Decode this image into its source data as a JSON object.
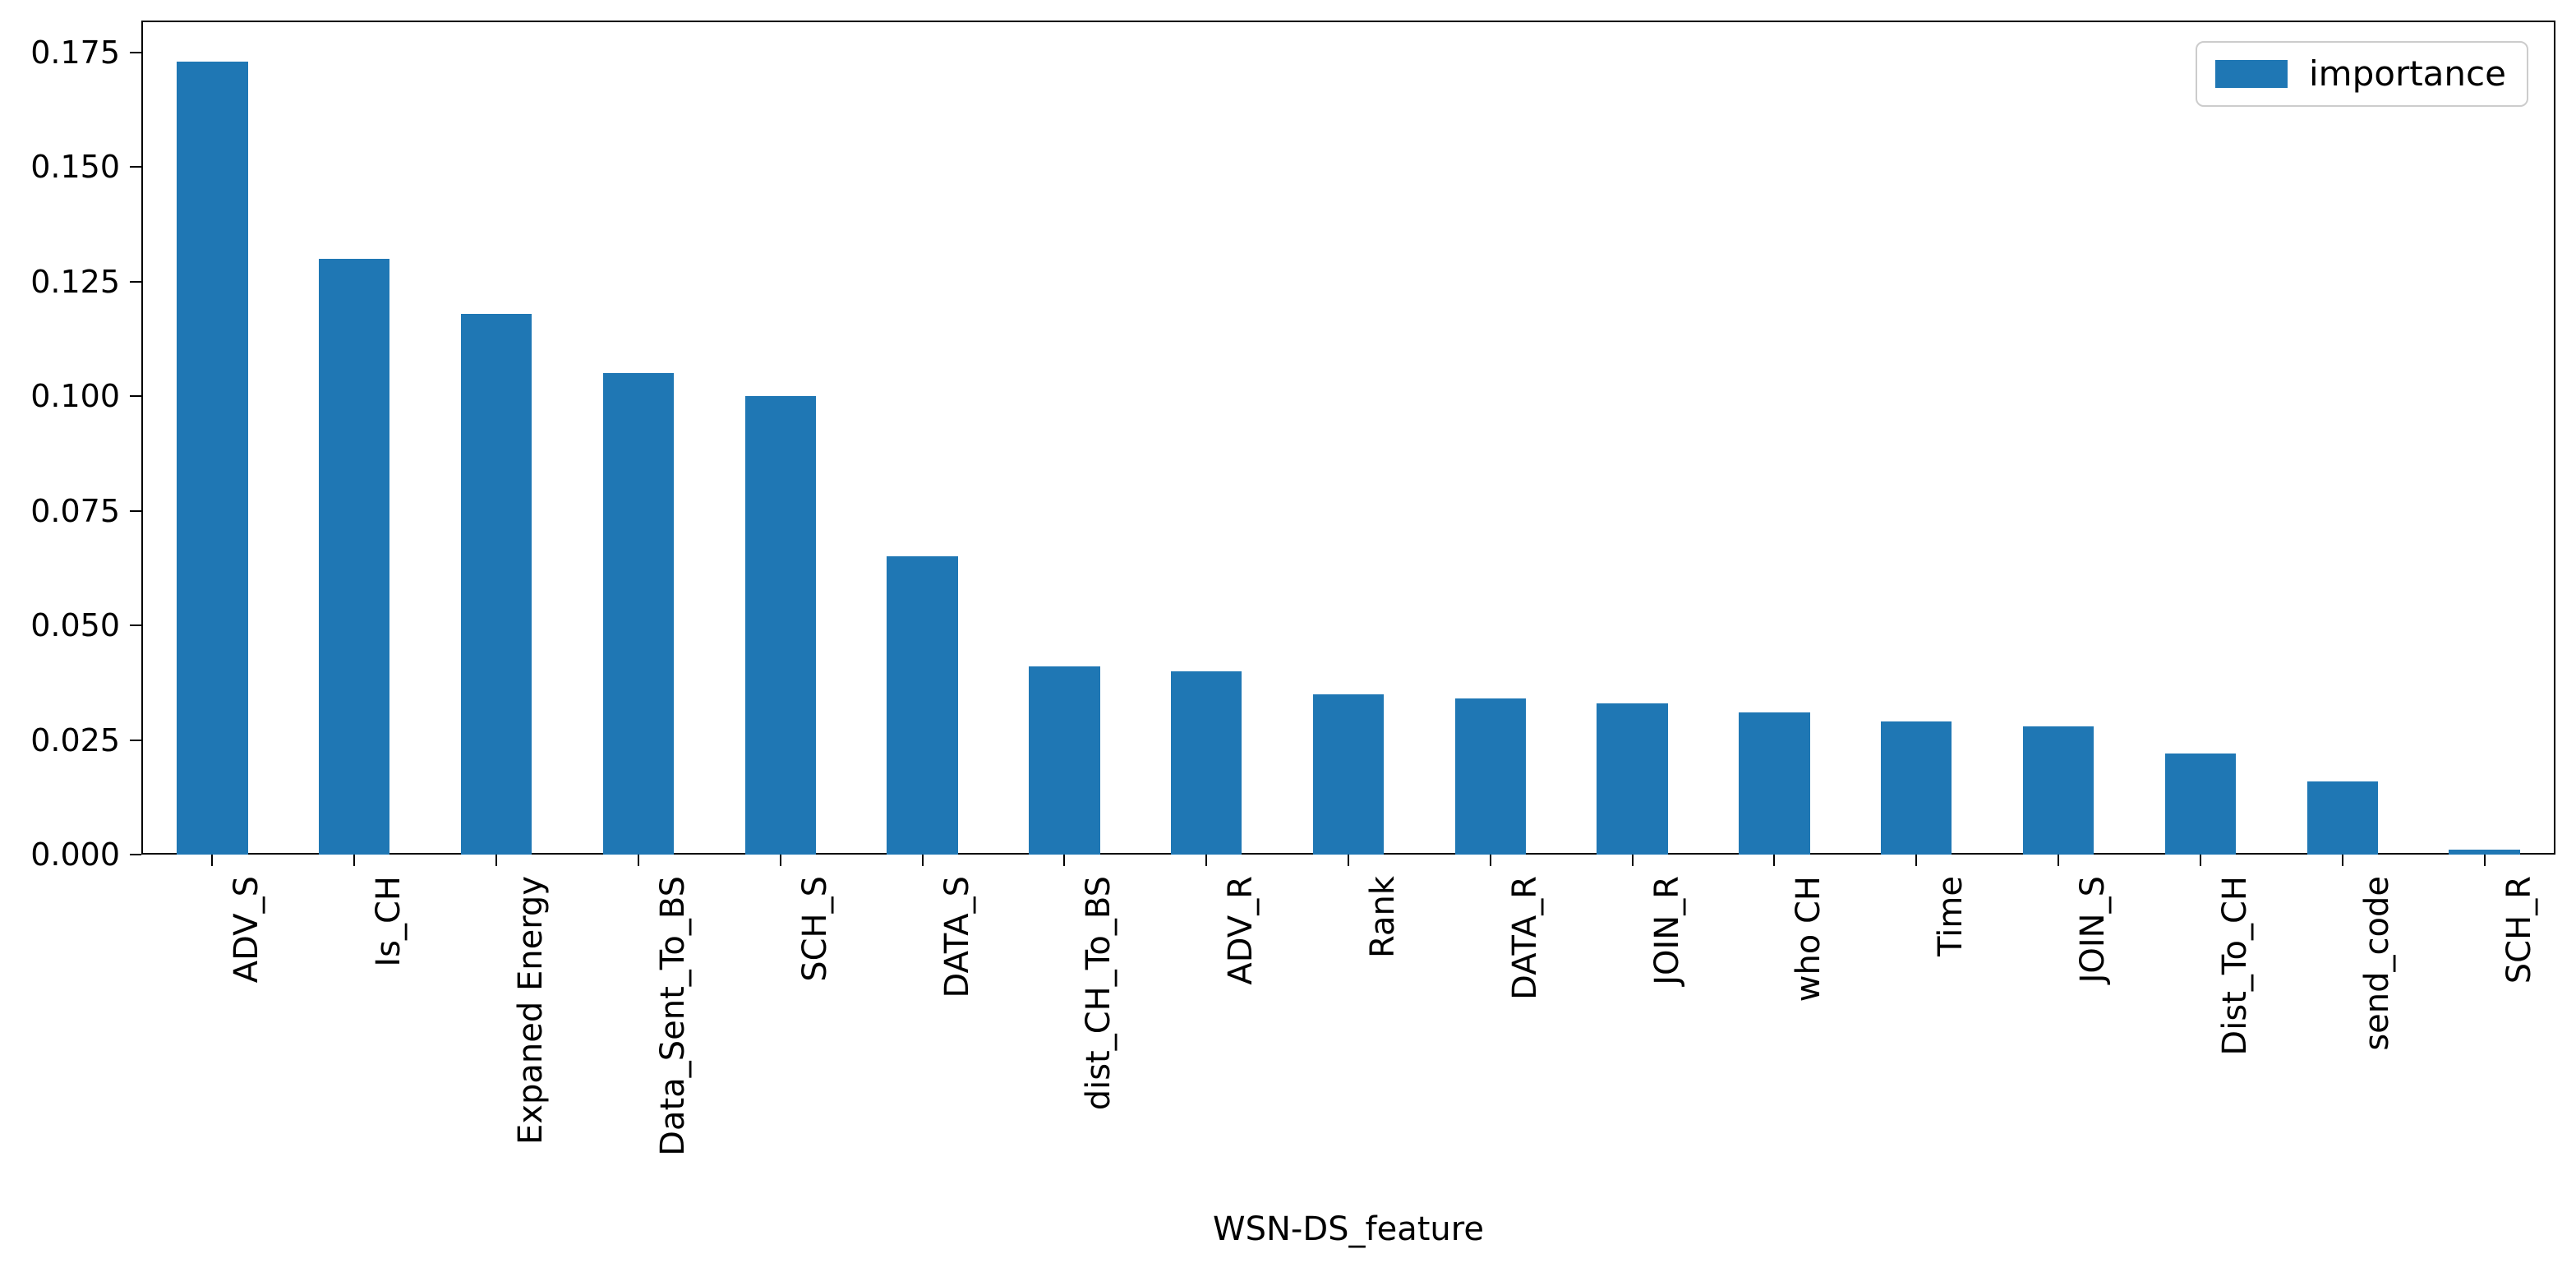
{
  "chart_data": {
    "type": "bar",
    "title": "",
    "xlabel": "WSN-DS_feature",
    "ylabel": "",
    "legend": [
      "importance"
    ],
    "legend_position": "upper right",
    "grid": false,
    "bar_color": "#1f77b4",
    "axis_color": "#000000",
    "background_color": "#ffffff",
    "x_tick_rotation": 90,
    "categories": [
      "ADV_S",
      "Is_CH",
      "Expaned Energy",
      "Data_Sent_To_BS",
      "SCH_S",
      "DATA_S",
      "dist_CH_To_BS",
      "ADV_R",
      "Rank",
      "DATA_R",
      "JOIN_R",
      "who CH",
      "Time",
      "JOIN_S",
      "Dist_To_CH",
      "send_code",
      "SCH_R"
    ],
    "values": [
      0.173,
      0.13,
      0.118,
      0.105,
      0.1,
      0.065,
      0.041,
      0.04,
      0.035,
      0.034,
      0.033,
      0.031,
      0.029,
      0.028,
      0.022,
      0.016,
      0.001
    ],
    "yticks": [
      {
        "label": "0.000",
        "value": 0.0
      },
      {
        "label": "0.025",
        "value": 0.025
      },
      {
        "label": "0.050",
        "value": 0.05
      },
      {
        "label": "0.075",
        "value": 0.075
      },
      {
        "label": "0.100",
        "value": 0.1
      },
      {
        "label": "0.125",
        "value": 0.125
      },
      {
        "label": "0.150",
        "value": 0.15
      },
      {
        "label": "0.175",
        "value": 0.175
      }
    ],
    "ylim": [
      0,
      0.182
    ]
  }
}
